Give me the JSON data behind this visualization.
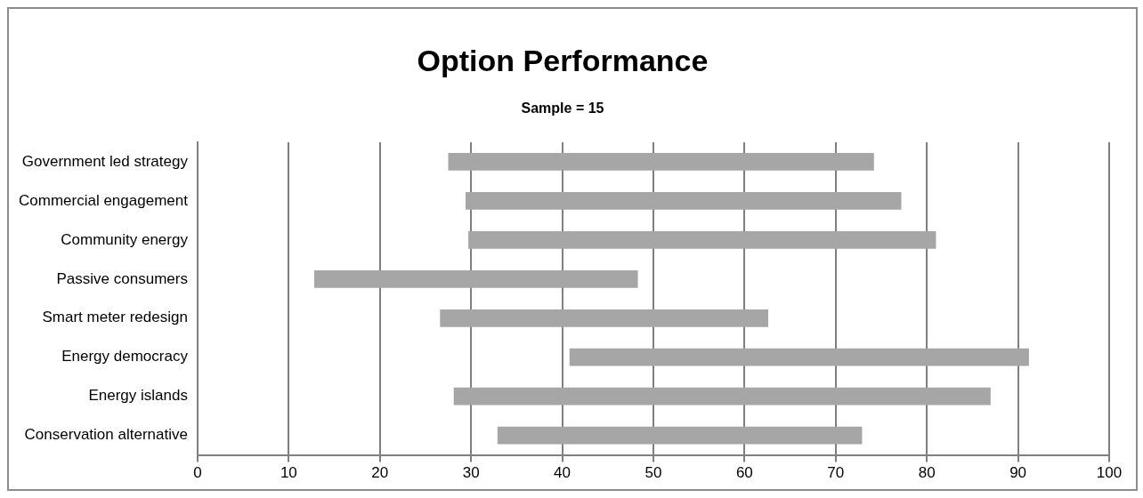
{
  "chart_data": {
    "type": "bar",
    "orientation": "horizontal",
    "title": "Option Performance",
    "subtitle": "Sample = 15",
    "categories": [
      "Government led strategy",
      "Commercial engagement",
      "Community energy",
      "Passive consumers",
      "Smart meter redesign",
      "Energy democracy",
      "Energy islands",
      "Conservation alternative"
    ],
    "base": [
      27.5,
      29.4,
      29.7,
      12.8,
      26.6,
      40.8,
      28.1,
      32.9
    ],
    "values": [
      46.7,
      47.8,
      51.3,
      35.5,
      36,
      50.4,
      58.9,
      40
    ],
    "color": "#a6a6a6",
    "xlim": [
      0,
      100
    ],
    "xticks": [
      0,
      10,
      20,
      30,
      40,
      50,
      60,
      70,
      80,
      90,
      100
    ],
    "grid": "x",
    "legend": false
  }
}
